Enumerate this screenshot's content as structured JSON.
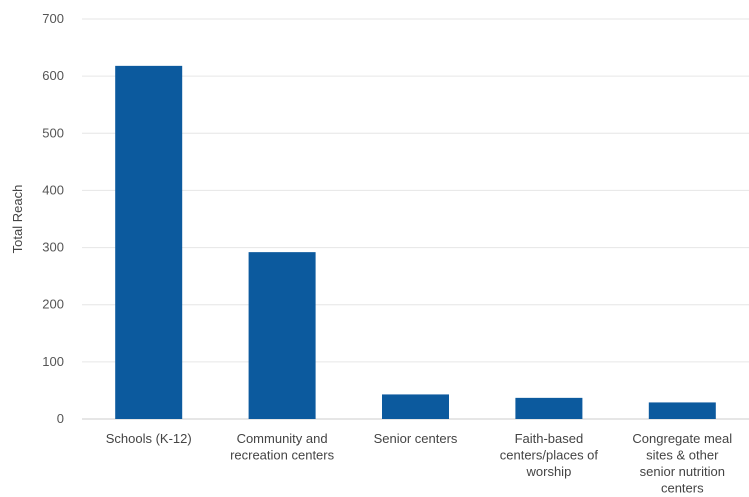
{
  "chart_data": {
    "type": "bar",
    "categories": [
      "Schools (K-12)",
      "Community and recreation centers",
      "Senior centers",
      "Faith-based centers/places of worship",
      "Congregate meal sites & other senior nutrition centers"
    ],
    "category_label_lines": [
      [
        "Schools (K-12)"
      ],
      [
        "Community and",
        "recreation centers"
      ],
      [
        "Senior centers"
      ],
      [
        "Faith-based",
        "centers/places of",
        "worship"
      ],
      [
        "Congregate meal",
        "sites & other",
        "senior nutrition",
        "centers"
      ]
    ],
    "values": [
      618,
      292,
      43,
      37,
      29
    ],
    "ylabel": "Total Reach",
    "xlabel": "",
    "title": "",
    "ylim": [
      0,
      700
    ],
    "yticks": [
      0,
      100,
      200,
      300,
      400,
      500,
      600,
      700
    ],
    "grid": true,
    "legend": "none",
    "bar_color": "#0c5a9e"
  }
}
